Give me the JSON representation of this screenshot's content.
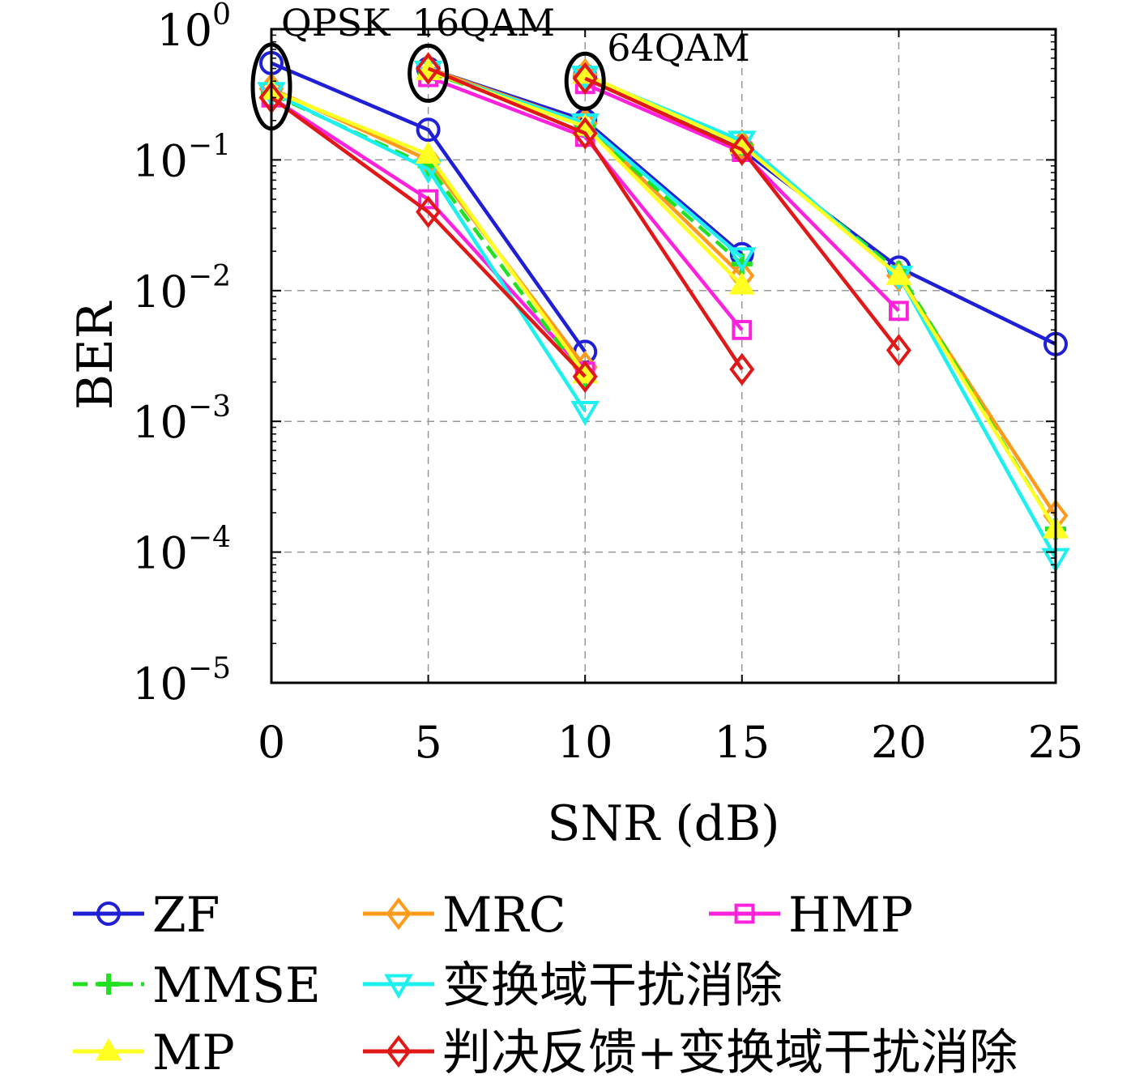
{
  "chart_data": {
    "type": "line",
    "xlabel": "SNR (dB)",
    "ylabel": "BER",
    "yscale": "log",
    "xlim": [
      0,
      25
    ],
    "ylim": [
      1e-05,
      1
    ],
    "x_ticks": [
      0,
      5,
      10,
      15,
      20,
      25
    ],
    "y_ticks": [
      {
        "value": 1,
        "exp": "0"
      },
      {
        "value": 0.1,
        "exp": "−1"
      },
      {
        "value": 0.01,
        "exp": "−2"
      },
      {
        "value": 0.001,
        "exp": "−3"
      },
      {
        "value": 0.0001,
        "exp": "−4"
      },
      {
        "value": 1e-05,
        "exp": "−5"
      }
    ],
    "tick_base": "10",
    "grid": true,
    "legend_position": "bottom",
    "annotations": [
      {
        "text": "QPSK",
        "x": 0,
        "y": 0.52,
        "group": "QPSK"
      },
      {
        "text": "16QAM",
        "x": 5,
        "y": 0.46,
        "group": "16QAM"
      },
      {
        "text": "64QAM",
        "x": 10,
        "y": 0.4,
        "group": "64QAM"
      }
    ],
    "series": [
      {
        "name": "ZF",
        "color": "#1f1fd6",
        "marker": "circle",
        "dash": "solid",
        "groups": [
          {
            "mod": "QPSK",
            "x": [
              0,
              5,
              10
            ],
            "y": [
              0.55,
              0.17,
              0.0034
            ]
          },
          {
            "mod": "16QAM",
            "x": [
              5,
              10,
              15
            ],
            "y": [
              0.5,
              0.2,
              0.019
            ]
          },
          {
            "mod": "64QAM",
            "x": [
              10,
              15,
              20,
              25
            ],
            "y": [
              0.44,
              0.12,
              0.015,
              0.0039
            ]
          }
        ]
      },
      {
        "name": "MRC",
        "color": "#ff9a1a",
        "marker": "diamond",
        "dash": "solid",
        "groups": [
          {
            "mod": "QPSK",
            "x": [
              0,
              5,
              10
            ],
            "y": [
              0.35,
              0.1,
              0.0026
            ]
          },
          {
            "mod": "16QAM",
            "x": [
              5,
              10,
              15
            ],
            "y": [
              0.5,
              0.19,
              0.013
            ]
          },
          {
            "mod": "64QAM",
            "x": [
              10,
              15,
              20,
              25
            ],
            "y": [
              0.45,
              0.13,
              0.013,
              0.00019
            ]
          }
        ]
      },
      {
        "name": "HMP",
        "color": "#ff22dd",
        "marker": "square",
        "dash": "solid",
        "groups": [
          {
            "mod": "QPSK",
            "x": [
              0,
              5,
              10
            ],
            "y": [
              0.3,
              0.05,
              0.0024
            ]
          },
          {
            "mod": "16QAM",
            "x": [
              5,
              10,
              15
            ],
            "y": [
              0.43,
              0.15,
              0.005
            ]
          },
          {
            "mod": "64QAM",
            "x": [
              10,
              15,
              20
            ],
            "y": [
              0.38,
              0.115,
              0.007
            ]
          }
        ]
      },
      {
        "name": "MMSE",
        "color": "#22e022",
        "marker": "plus",
        "dash": "dashed",
        "groups": [
          {
            "mod": "QPSK",
            "x": [
              0,
              5,
              10
            ],
            "y": [
              0.32,
              0.09,
              0.0021
            ]
          },
          {
            "mod": "16QAM",
            "x": [
              5,
              10,
              15
            ],
            "y": [
              0.47,
              0.18,
              0.016
            ]
          },
          {
            "mod": "64QAM",
            "x": [
              10,
              15,
              20,
              25
            ],
            "y": [
              0.43,
              0.13,
              0.014,
              0.00015
            ]
          }
        ]
      },
      {
        "name": "变换域干扰消除",
        "color": "#1ef0f0",
        "marker": "triangle-down",
        "dash": "solid",
        "groups": [
          {
            "mod": "QPSK",
            "x": [
              0,
              5,
              10
            ],
            "y": [
              0.33,
              0.085,
              0.0012
            ]
          },
          {
            "mod": "16QAM",
            "x": [
              5,
              10,
              15
            ],
            "y": [
              0.48,
              0.19,
              0.018
            ]
          },
          {
            "mod": "64QAM",
            "x": [
              10,
              15,
              20,
              25
            ],
            "y": [
              0.44,
              0.14,
              0.013,
              9e-05
            ]
          }
        ]
      },
      {
        "name": "MP",
        "color": "#ffff22",
        "marker": "triangle-up",
        "dash": "solid",
        "groups": [
          {
            "mod": "QPSK",
            "x": [
              0,
              5,
              10
            ],
            "y": [
              0.34,
              0.11,
              0.0023
            ]
          },
          {
            "mod": "16QAM",
            "x": [
              5,
              10,
              15
            ],
            "y": [
              0.48,
              0.18,
              0.011
            ]
          },
          {
            "mod": "64QAM",
            "x": [
              10,
              15,
              20,
              25
            ],
            "y": [
              0.45,
              0.13,
              0.013,
              0.00015
            ]
          }
        ]
      },
      {
        "name": "判决反馈+变换域干扰消除",
        "color": "#e01818",
        "marker": "diamond",
        "dash": "solid",
        "groups": [
          {
            "mod": "QPSK",
            "x": [
              0,
              5,
              10
            ],
            "y": [
              0.3,
              0.04,
              0.0022
            ]
          },
          {
            "mod": "16QAM",
            "x": [
              5,
              10,
              15
            ],
            "y": [
              0.5,
              0.16,
              0.0025
            ]
          },
          {
            "mod": "64QAM",
            "x": [
              10,
              15,
              20
            ],
            "y": [
              0.42,
              0.12,
              0.0035
            ]
          }
        ]
      }
    ]
  }
}
